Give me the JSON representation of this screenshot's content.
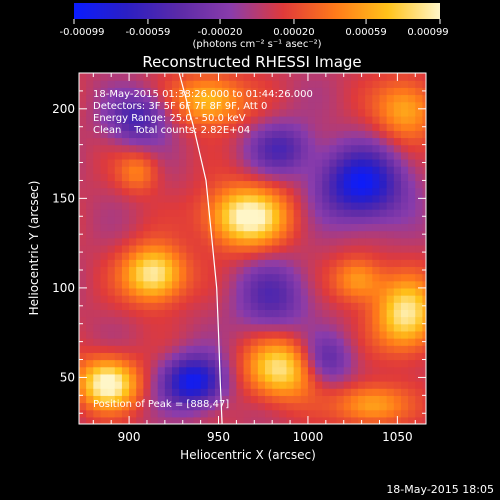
{
  "chart_data": {
    "type": "heatmap",
    "title": "Reconstructed RHESSI Image",
    "xlabel": "Heliocentric X (arcsec)",
    "ylabel": "Heliocentric Y (arcsec)",
    "xlim": [
      872,
      1066
    ],
    "ylim": [
      24,
      220
    ],
    "x_ticks": [
      900,
      950,
      1000,
      1050
    ],
    "y_ticks": [
      50,
      100,
      150,
      200
    ],
    "colorbar": {
      "label": "(photons cm⁻² s⁻¹ asec⁻²)",
      "range": [
        -0.00099,
        0.00099
      ],
      "tick_values": [
        -0.00099,
        -0.00059,
        -0.0002,
        0.0002,
        0.00059,
        0.00099
      ],
      "tick_labels": [
        "-0.00099",
        "-0.00059",
        "-0.00020",
        "0.00020",
        "0.00059",
        "0.00099"
      ],
      "colors": [
        "#0a1cff",
        "#2b1fc4",
        "#5b2aa8",
        "#8a3cab",
        "#e03a3a",
        "#ff7a1a",
        "#ffc21a",
        "#fff6c8"
      ]
    },
    "annotations": [
      "18-May-2015 01:38:26.000 to 01:44:26.000",
      "Detectors: 3F 5F 6F 7F 8F 9F, Att 0",
      "Energy Range: 25.0 - 50.0 keV",
      "Clean    Total counts: 2.82E+04"
    ],
    "peak_label": "Position of Peak = [888,47]",
    "peak": [
      888,
      47
    ],
    "limb_curve": [
      [
        928,
        220
      ],
      [
        936,
        190
      ],
      [
        943,
        160
      ],
      [
        946,
        130
      ],
      [
        949,
        100
      ],
      [
        950,
        75
      ],
      [
        951,
        47
      ],
      [
        952,
        24
      ]
    ],
    "sources": [
      {
        "x": 888,
        "y": 47,
        "amp": 1.0,
        "sx": 12,
        "sy": 10
      },
      {
        "x": 914,
        "y": 108,
        "amp": 0.95,
        "sx": 12,
        "sy": 11
      },
      {
        "x": 966,
        "y": 140,
        "amp": 1.0,
        "sx": 16,
        "sy": 12
      },
      {
        "x": 985,
        "y": 55,
        "amp": 0.85,
        "sx": 14,
        "sy": 12
      },
      {
        "x": 1055,
        "y": 85,
        "amp": 0.9,
        "sx": 12,
        "sy": 14
      },
      {
        "x": 1028,
        "y": 105,
        "amp": 0.55,
        "sx": 10,
        "sy": 9
      },
      {
        "x": 1055,
        "y": 200,
        "amp": 0.6,
        "sx": 12,
        "sy": 12
      },
      {
        "x": 945,
        "y": 205,
        "amp": 0.7,
        "sx": 14,
        "sy": 10
      },
      {
        "x": 1035,
        "y": 35,
        "amp": 0.6,
        "sx": 14,
        "sy": 8
      },
      {
        "x": 905,
        "y": 165,
        "amp": 0.4,
        "sx": 8,
        "sy": 8
      },
      {
        "x": 1030,
        "y": 158,
        "amp": -1.0,
        "sx": 16,
        "sy": 14
      },
      {
        "x": 936,
        "y": 48,
        "amp": -1.0,
        "sx": 12,
        "sy": 10
      },
      {
        "x": 905,
        "y": 195,
        "amp": -0.6,
        "sx": 12,
        "sy": 10
      },
      {
        "x": 985,
        "y": 178,
        "amp": -0.55,
        "sx": 12,
        "sy": 10
      },
      {
        "x": 980,
        "y": 95,
        "amp": -0.5,
        "sx": 14,
        "sy": 14
      },
      {
        "x": 1010,
        "y": 60,
        "amp": -0.5,
        "sx": 10,
        "sy": 10
      }
    ]
  },
  "footer": {
    "timestamp": "18-May-2015 18:05"
  }
}
